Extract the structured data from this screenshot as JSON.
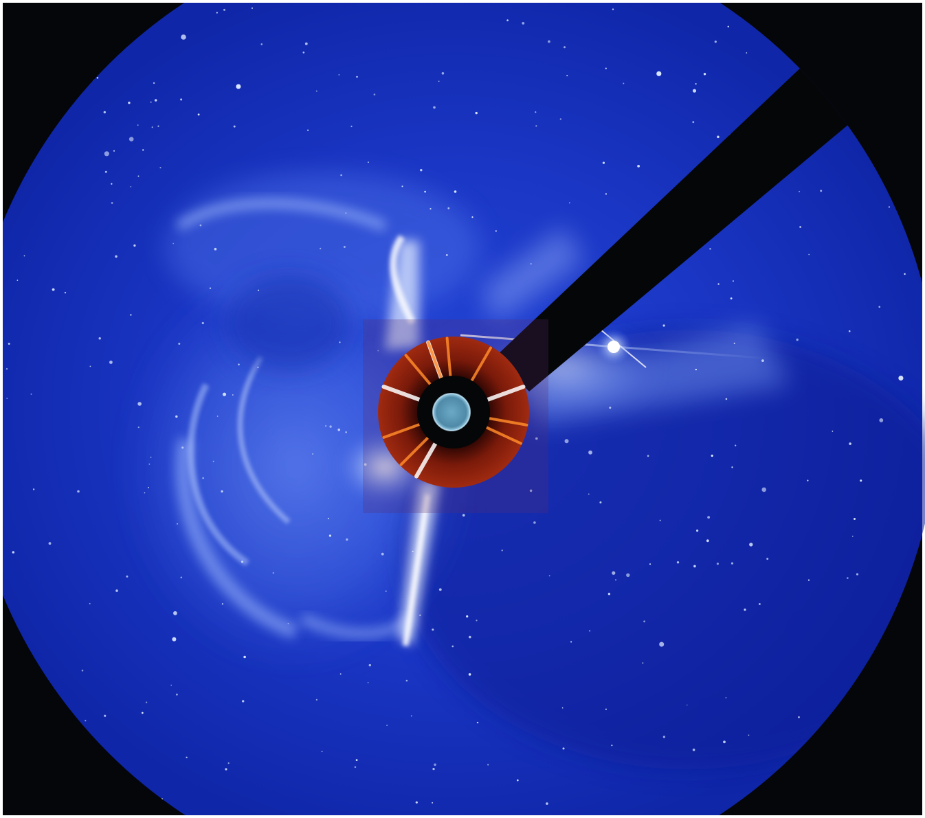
{
  "image": {
    "subject": "coronagraph-cme",
    "colors": {
      "frame": "#ffffff",
      "background": "#05060a",
      "field_deep": "#0a1e9c",
      "field_mid": "#1f3fd2",
      "field_glow": "#9bb8ff",
      "inner_ring": "#6e1408",
      "inner_ring_bright": "#ff8a2a",
      "occulter": "#050608",
      "sun_disk": "#5fa6c4",
      "star": "#dbe8ff"
    }
  }
}
